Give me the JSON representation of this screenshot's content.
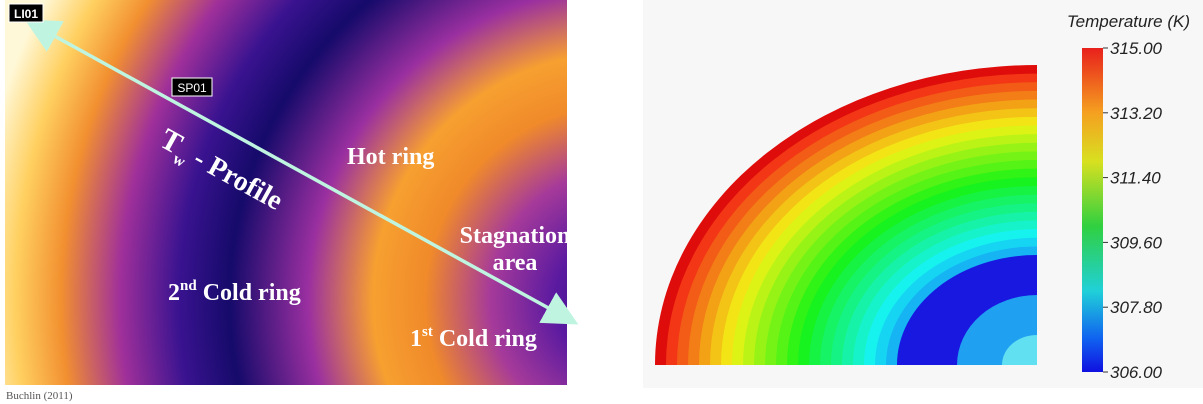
{
  "left": {
    "tags": {
      "line": "LI01",
      "spot": "SP01"
    },
    "profile": {
      "base": "T",
      "sub": "w",
      "rest": " - Profile"
    },
    "hot_ring": "Hot ring",
    "stagnation": [
      "Stagnation",
      "area"
    ],
    "cold_ring_2": {
      "num": "2",
      "sup": "nd",
      "rest": " Cold  ring"
    },
    "cold_ring_1": {
      "num": "1",
      "sup": "st",
      "rest": " Cold  ring"
    },
    "caption": "Buchlin (2011)"
  },
  "right": {
    "colorbar": {
      "title": "Temperature (K)",
      "ticks": [
        "315.00",
        "313.20",
        "311.40",
        "309.60",
        "307.80",
        "306.00"
      ]
    }
  }
}
